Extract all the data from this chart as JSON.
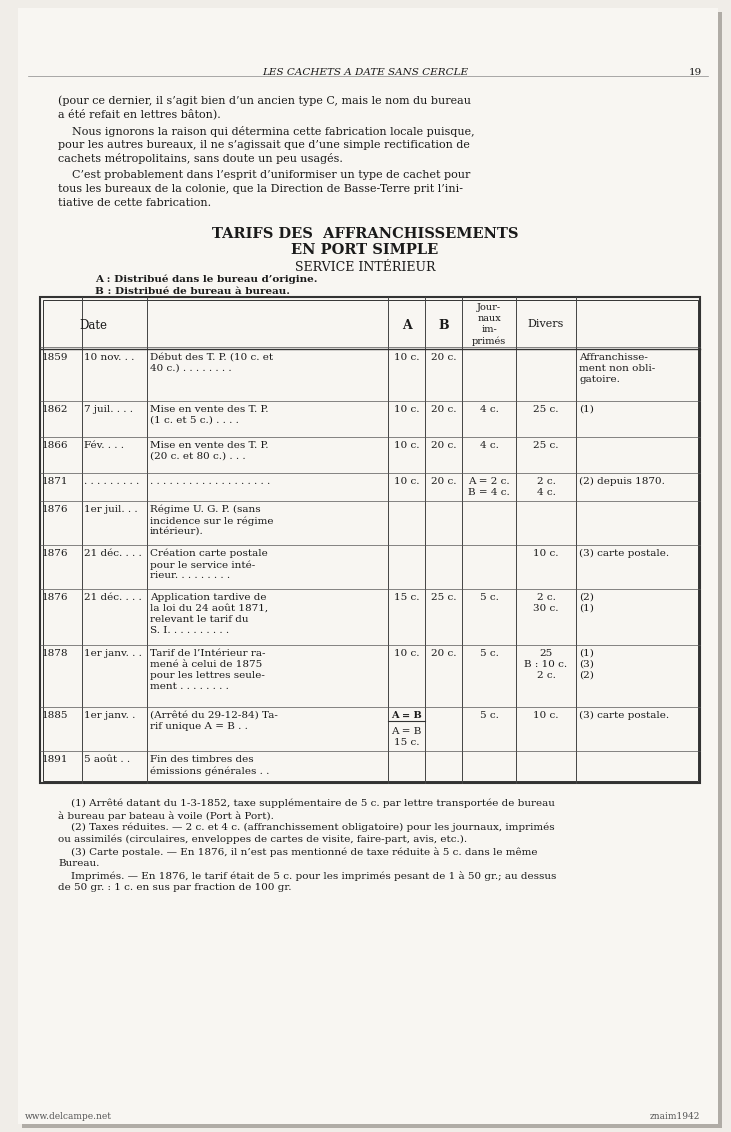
{
  "bg_color": "#f0ede8",
  "page_color": "#f5f3ef",
  "shadow_color": "#c8c4be",
  "text_color": "#1a1a1a",
  "header_italic": "LES CACHETS A DATE SANS CERCLE",
  "header_page": "19",
  "para1_lines": [
    "(pour ce dernier, il s’agit bien d’un ancien type C, mais le nom du bureau",
    "a été refait en lettres bâton)."
  ],
  "para2_lines": [
    "    Nous ignorons la raison qui détermina cette fabrication locale puisque,",
    "pour les autres bureaux, il ne s’agissait que d’une simple rectification de",
    "cachets métropolitains, sans doute un peu usagés."
  ],
  "para3_lines": [
    "    C’est probablement dans l’esprit d’uniformiser un type de cachet pour",
    "tous les bureaux de la colonie, que la Direction de Basse-Terre prit l’ini-",
    "tiative de cette fabrication."
  ],
  "title1": "TARIFS DES  AFFRANCHISSEMENTS",
  "title2": "EN PORT SIMPLE",
  "subtitle": "SERVICE INTÉRIEUR",
  "legendA": "A : Distribué dans le bureau d’origine.",
  "legendB": "B : Distribué de bureau à bureau.",
  "footnote_lines": [
    "    (1) Arrêté datant du 1-3-1852, taxe supplémentaire de 5 c. par lettre transportée de bureau",
    "à bureau par bateau à voile (Port à Port).",
    "    (2) Taxes réduites. — 2 c. et 4 c. (affranchissement obligatoire) pour les journaux, imprimés",
    "ou assimilés (circulaires, enveloppes de cartes de visite, faire-part, avis, etc.).",
    "    (3) Carte postale. — En 1876, il n’est pas mentionné de taxe réduite à 5 c. dans le même",
    "Bureau.",
    "    Imprimés. — En 1876, le tarif était de 5 c. pour les imprimés pesant de 1 à 50 gr.; au dessus",
    "de 50 gr. : 1 c. en sus par fraction de 100 gr."
  ]
}
